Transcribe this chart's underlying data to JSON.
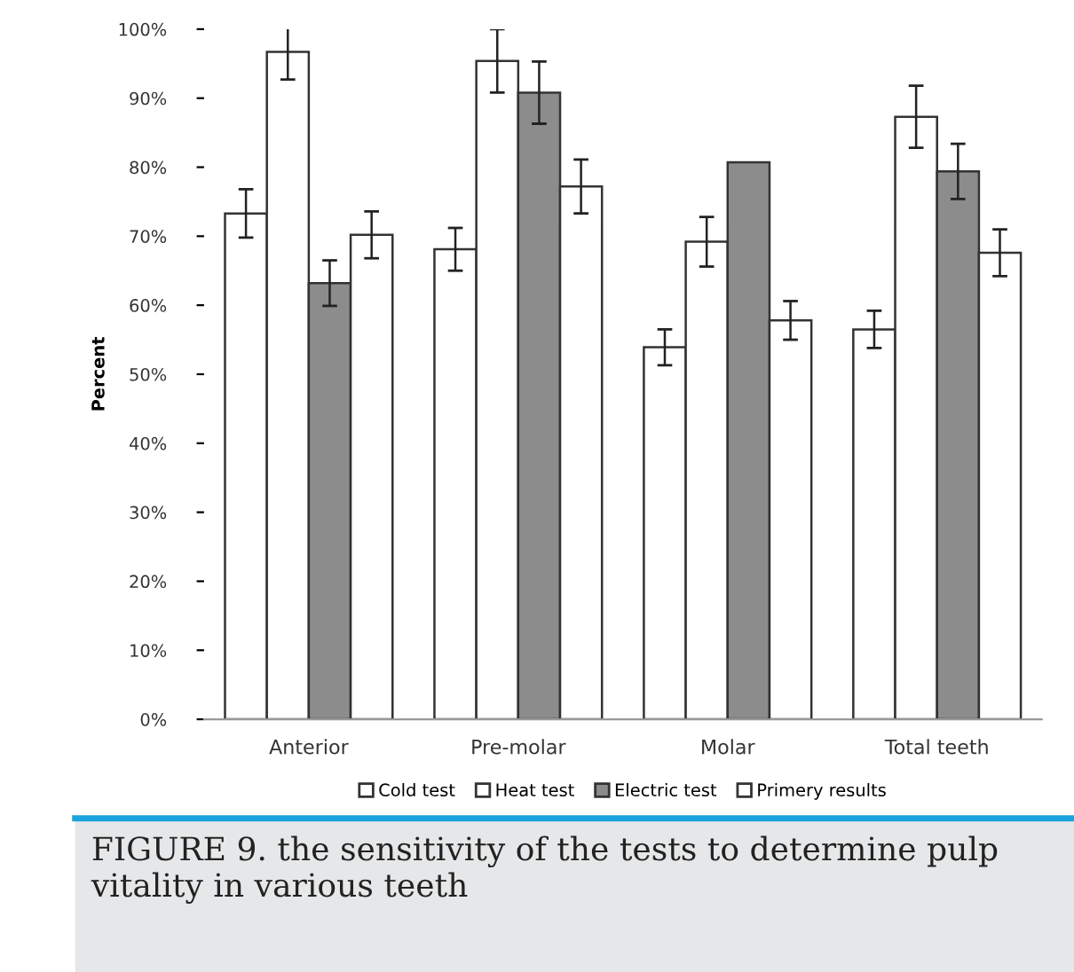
{
  "chart_data": {
    "type": "bar",
    "ylabel": "Percent",
    "categories": [
      "Anterior",
      "Pre-molar",
      "Molar",
      "Total teeth"
    ],
    "series": [
      {
        "name": "Cold test",
        "color": "#ffffff",
        "values": [
          73.3,
          68.1,
          53.9,
          56.5
        ],
        "errors": [
          3.5,
          3.1,
          2.6,
          2.7
        ]
      },
      {
        "name": "Heat test",
        "color": "#ffffff",
        "values": [
          96.7,
          95.4,
          69.2,
          87.3
        ],
        "errors": [
          4.0,
          4.6,
          3.6,
          4.5
        ]
      },
      {
        "name": "Electric test",
        "color": "#8c8c8c",
        "values": [
          63.2,
          90.8,
          80.7,
          79.4
        ],
        "errors": [
          3.3,
          4.5,
          null,
          4.0
        ]
      },
      {
        "name": "Primery results",
        "color": "#ffffff",
        "values": [
          70.2,
          77.2,
          57.8,
          67.6
        ],
        "errors": [
          3.4,
          3.9,
          2.8,
          3.4
        ]
      }
    ],
    "ylim": [
      0,
      100
    ],
    "yticks": [
      {
        "value": 0,
        "label": "0%"
      },
      {
        "value": 10,
        "label": "10%"
      },
      {
        "value": 20,
        "label": "20%"
      },
      {
        "value": 30,
        "label": "30%"
      },
      {
        "value": 40,
        "label": "40%"
      },
      {
        "value": 50,
        "label": "50%"
      },
      {
        "value": 60,
        "label": "60%"
      },
      {
        "value": 70,
        "label": "70%"
      },
      {
        "value": 80,
        "label": "80%"
      },
      {
        "value": 90,
        "label": "90%"
      },
      {
        "value": 100,
        "label": "100%"
      }
    ],
    "grid": false,
    "legend": "bottom",
    "annotations": [
      "FIGURE 9. the sensitivity of the tests to determine pulp vitality in various teeth"
    ]
  }
}
